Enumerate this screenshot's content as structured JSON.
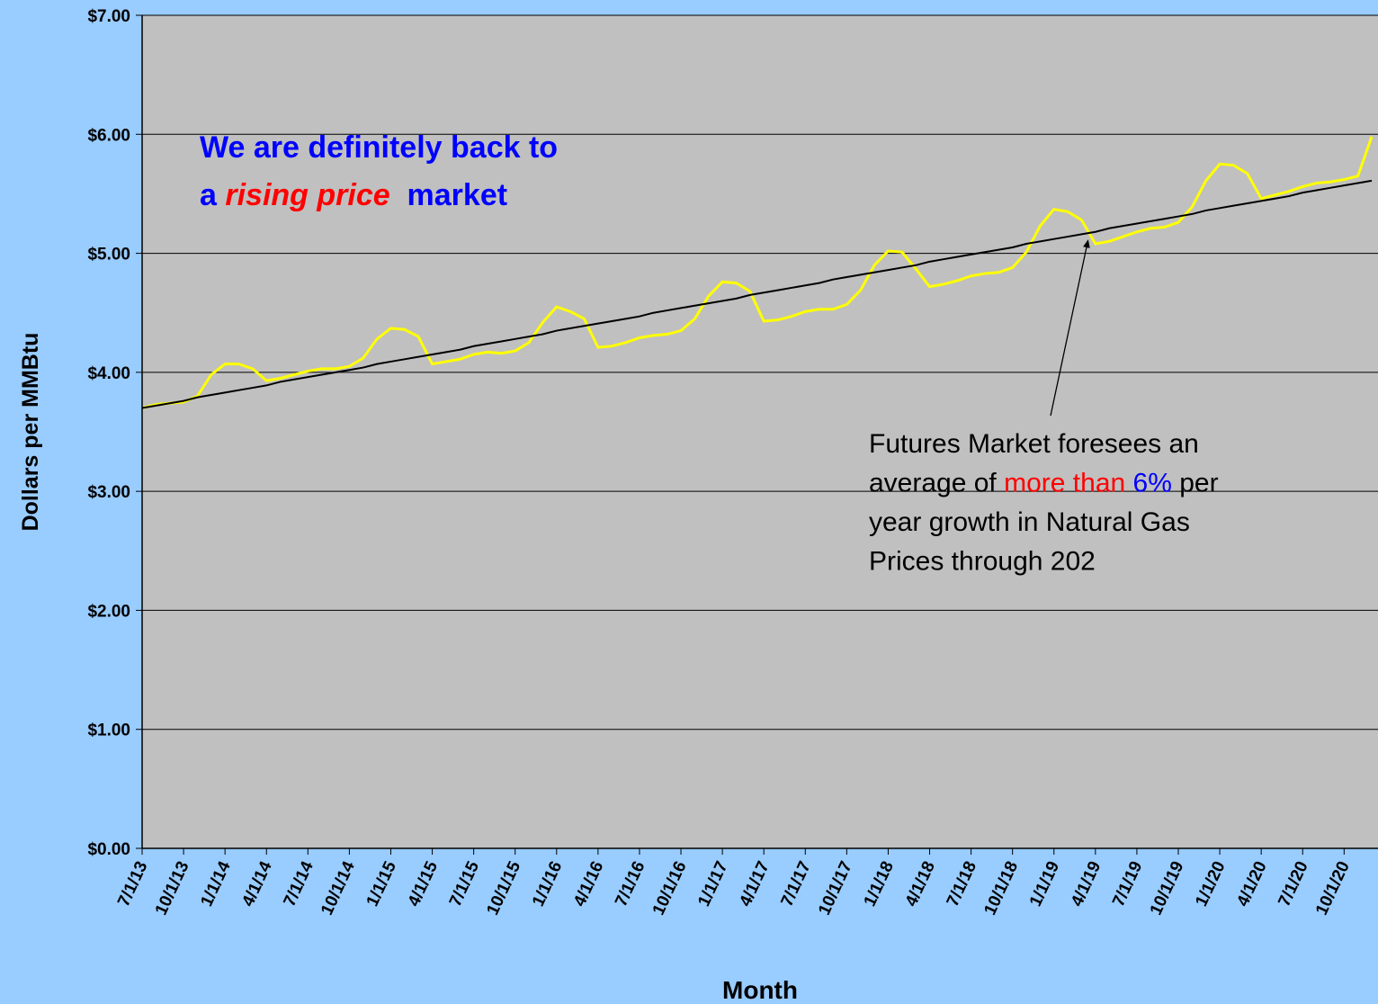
{
  "chart_data": {
    "type": "line",
    "ylabel": "Dollars per MMBtu",
    "xlabel": "Month",
    "categories": [
      "7/1/13",
      null,
      null,
      "10/1/13",
      null,
      null,
      "1/1/14",
      null,
      null,
      "4/1/14",
      null,
      null,
      "7/1/14",
      null,
      null,
      "10/1/14",
      null,
      null,
      "1/1/15",
      null,
      null,
      "4/1/15",
      null,
      null,
      "7/1/15",
      null,
      null,
      "10/1/15",
      null,
      null,
      "1/1/16",
      null,
      null,
      "4/1/16",
      null,
      null,
      "7/1/16",
      null,
      null,
      "10/1/16",
      null,
      null,
      "1/1/17",
      null,
      null,
      "4/1/17",
      null,
      null,
      "7/1/17",
      null,
      null,
      "10/1/17",
      null,
      null,
      "1/1/18",
      null,
      null,
      "4/1/18",
      null,
      null,
      "7/1/18",
      null,
      null,
      "10/1/18",
      null,
      null,
      "1/1/19",
      null,
      null,
      "4/1/19",
      null,
      null,
      "7/1/19",
      null,
      null,
      "10/1/19",
      null,
      null,
      "1/1/20",
      null,
      null,
      "4/1/20",
      null,
      null,
      "7/1/20",
      null,
      null,
      "10/1/20",
      null,
      null
    ],
    "series": [
      {
        "color": "#ffff00",
        "values": [
          3.7,
          3.73,
          3.74,
          3.75,
          3.8,
          3.98,
          4.07,
          4.07,
          4.03,
          3.93,
          3.95,
          3.98,
          4.01,
          4.03,
          4.03,
          4.05,
          4.12,
          4.28,
          4.37,
          4.36,
          4.3,
          4.07,
          4.09,
          4.11,
          4.15,
          4.17,
          4.16,
          4.18,
          4.25,
          4.42,
          4.55,
          4.51,
          4.45,
          4.21,
          4.22,
          4.25,
          4.29,
          4.31,
          4.32,
          4.35,
          4.45,
          4.64,
          4.76,
          4.75,
          4.68,
          4.43,
          4.44,
          4.47,
          4.51,
          4.53,
          4.53,
          4.57,
          4.69,
          4.9,
          5.02,
          5.01,
          4.87,
          4.72,
          4.74,
          4.77,
          4.81,
          4.83,
          4.84,
          4.88,
          5.01,
          5.23,
          5.37,
          5.35,
          5.28,
          5.08,
          5.1,
          5.14,
          5.18,
          5.21,
          5.22,
          5.26,
          5.39,
          5.61,
          5.75,
          5.74,
          5.67,
          5.46,
          5.49,
          5.52,
          5.56,
          5.59,
          5.6,
          5.62,
          5.65,
          5.98
        ]
      },
      {
        "color": "#000000",
        "values": [
          3.7,
          3.72,
          3.74,
          3.76,
          3.79,
          3.81,
          3.83,
          3.85,
          3.87,
          3.89,
          3.92,
          3.94,
          3.96,
          3.98,
          4.0,
          4.02,
          4.04,
          4.07,
          4.09,
          4.11,
          4.13,
          4.15,
          4.17,
          4.19,
          4.22,
          4.24,
          4.26,
          4.28,
          4.3,
          4.32,
          4.35,
          4.37,
          4.39,
          4.41,
          4.43,
          4.45,
          4.47,
          4.5,
          4.52,
          4.54,
          4.56,
          4.58,
          4.6,
          4.62,
          4.65,
          4.67,
          4.69,
          4.71,
          4.73,
          4.75,
          4.78,
          4.8,
          4.82,
          4.84,
          4.86,
          4.88,
          4.9,
          4.93,
          4.95,
          4.97,
          4.99,
          5.01,
          5.03,
          5.05,
          5.08,
          5.1,
          5.12,
          5.14,
          5.16,
          5.18,
          5.21,
          5.23,
          5.25,
          5.27,
          5.29,
          5.31,
          5.33,
          5.36,
          5.38,
          5.4,
          5.42,
          5.44,
          5.46,
          5.48,
          5.51,
          5.53,
          5.55,
          5.57,
          5.59,
          5.61
        ]
      }
    ],
    "ylim": [
      0,
      7
    ],
    "yticks": [
      {
        "value": 0,
        "label": "$0.00"
      },
      {
        "value": 1,
        "label": "$1.00"
      },
      {
        "value": 2,
        "label": "$2.00"
      },
      {
        "value": 3,
        "label": "$3.00"
      },
      {
        "value": 4,
        "label": "$4.00"
      },
      {
        "value": 5,
        "label": "$5.00"
      },
      {
        "value": 6,
        "label": "$6.00"
      },
      {
        "value": 7,
        "label": "$7.00"
      }
    ],
    "grid": true,
    "background": "#c0c0c0",
    "annotations": [
      {
        "lines": [
          [
            {
              "text": "We are definitely back to",
              "color": "#0000ff"
            }
          ],
          [
            {
              "text": "a ",
              "color": "#0000ff"
            },
            {
              "text": "rising price",
              "color": "#ff0000",
              "italic": true
            },
            {
              "text": "  market",
              "color": "#0000ff"
            }
          ]
        ]
      },
      {
        "lines": [
          [
            {
              "text": "Futures Market foresees an",
              "color": "#000000"
            }
          ],
          [
            {
              "text": "average of ",
              "color": "#000000"
            },
            {
              "text": "more than",
              "color": "#ff0000"
            },
            {
              "text": " ",
              "color": "#000000"
            },
            {
              "text": "6%",
              "color": "#0000ff"
            },
            {
              "text": " per",
              "color": "#000000"
            }
          ],
          [
            {
              "text": "year growth in Natural Gas",
              "color": "#000000"
            }
          ],
          [
            {
              "text": "Prices through 202",
              "color": "#000000"
            }
          ]
        ]
      }
    ]
  }
}
